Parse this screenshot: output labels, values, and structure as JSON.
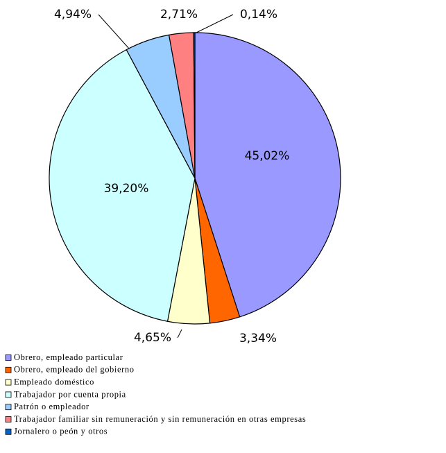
{
  "chart_data": {
    "type": "pie",
    "categories": [
      "Obrero, empleado particular",
      "Obrero, empleado del gobierno",
      "Empleado doméstico",
      "Trabajador por cuenta propia",
      "Patrón o empleador",
      "Trabajador familiar sin remuneración y sin remuneración en otras empresas",
      "Jornalero o peón y otros"
    ],
    "values": [
      45.02,
      3.34,
      4.65,
      39.2,
      4.94,
      2.71,
      0.14
    ],
    "value_labels": [
      "45,02%",
      "3,34%",
      "4,65%",
      "39,20%",
      "4,94%",
      "2,71%",
      "0,14%"
    ],
    "colors": [
      "#9999ff",
      "#ff6600",
      "#ffffcc",
      "#ccffff",
      "#99ccff",
      "#ff8080",
      "#0066cc"
    ],
    "legend": "bottom-left"
  }
}
